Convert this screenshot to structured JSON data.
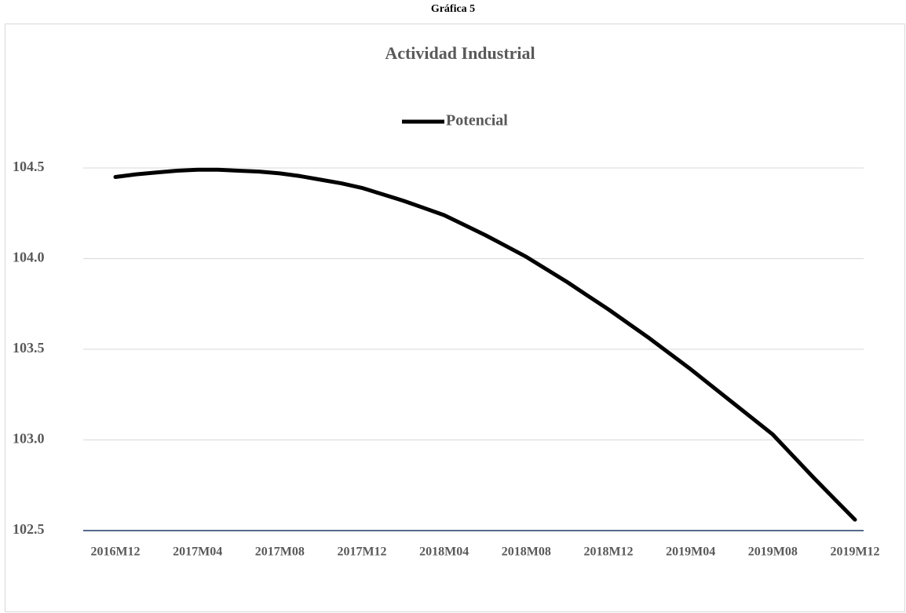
{
  "header": "Gráfica 5",
  "chart_data": {
    "type": "line",
    "title": "Actividad Industrial",
    "categories": [
      "2016M12",
      null,
      null,
      null,
      "2017M04",
      null,
      null,
      null,
      "2017M08",
      null,
      null,
      null,
      "2017M12",
      null,
      null,
      null,
      "2018M04",
      null,
      null,
      null,
      "2018M08",
      null,
      null,
      null,
      "2018M12",
      null,
      null,
      null,
      "2019M04",
      null,
      null,
      null,
      "2019M08",
      null,
      null,
      null,
      "2019M12"
    ],
    "series": [
      {
        "name": "Potencial",
        "color": "#000000",
        "values": [
          104.45,
          104.465,
          104.475,
          104.485,
          104.49,
          104.49,
          104.485,
          104.48,
          104.47,
          104.455,
          104.435,
          104.415,
          104.39,
          104.355,
          104.32,
          104.28,
          104.24,
          104.185,
          104.13,
          104.07,
          104.01,
          103.94,
          103.87,
          103.795,
          103.72,
          103.64,
          103.56,
          103.475,
          103.39,
          103.3,
          103.21,
          103.12,
          103.03,
          102.91,
          102.79,
          102.675,
          102.56
        ]
      }
    ],
    "ylim": [
      102.5,
      104.5
    ],
    "yticks": [
      102.5,
      {
        "value": 103,
        "label": "103.0"
      },
      103.5,
      {
        "value": 104,
        "label": "104.0"
      },
      104.5
    ],
    "grid": true,
    "legend": "top"
  }
}
